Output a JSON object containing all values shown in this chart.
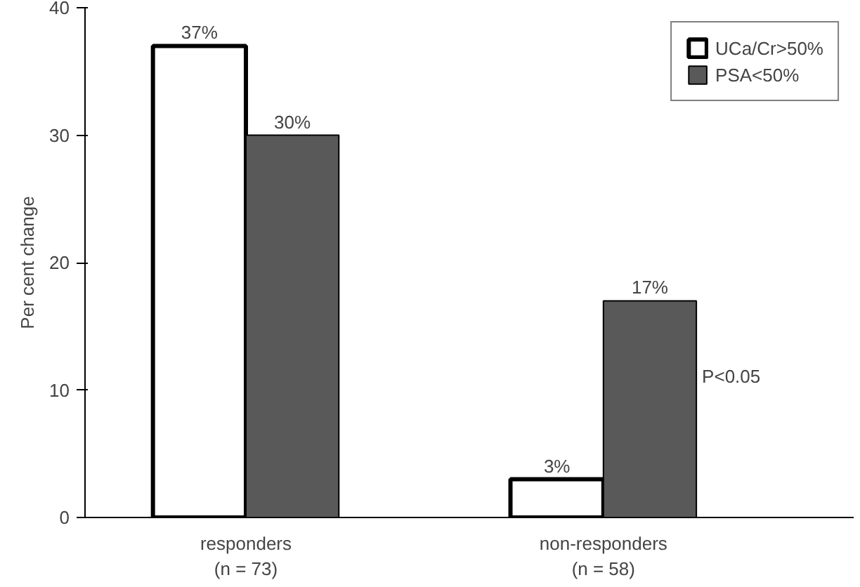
{
  "chart_data": {
    "type": "bar",
    "ylabel": "Per cent change",
    "categories": [
      "responders\n(n = 73)",
      "non-responders\n(n = 58)"
    ],
    "series": [
      {
        "name": "UCa/Cr>50%",
        "color": "#ffffff",
        "values": [
          37,
          3
        ],
        "value_labels": [
          "37%",
          "3%"
        ]
      },
      {
        "name": "PSA<50%",
        "color": "#595959",
        "values": [
          30,
          17
        ],
        "value_labels": [
          "30%",
          "17%"
        ]
      }
    ],
    "ylim": [
      0,
      40
    ],
    "yticks": [
      0,
      10,
      20,
      30,
      40
    ],
    "grid": false,
    "legend": "top right",
    "annotations": [
      "P<0.05"
    ]
  }
}
